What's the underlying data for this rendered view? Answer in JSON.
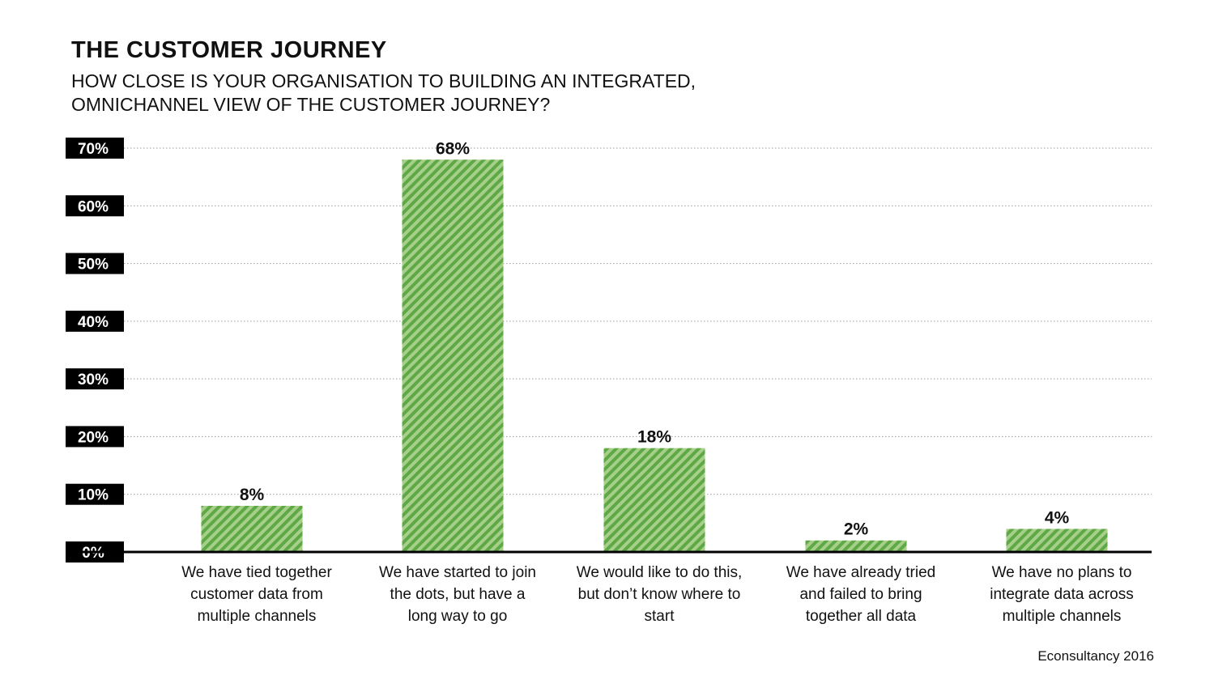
{
  "header": {
    "title": "THE CUSTOMER JOURNEY",
    "subtitle_line1": "HOW CLOSE IS YOUR ORGANISATION TO BUILDING AN INTEGRATED,",
    "subtitle_line2": "OMNICHANNEL VIEW OF THE CUSTOMER JOURNEY?"
  },
  "source": "Econsultancy 2016",
  "chart_data": {
    "type": "bar",
    "categories": [
      [
        "We have tied together",
        "customer data from",
        "multiple channels"
      ],
      [
        "We have started to join",
        "the dots, but have a",
        "long way to go"
      ],
      [
        "We would like to do this,",
        "but don’t know where to",
        "start"
      ],
      [
        "We have already tried",
        "and failed to bring",
        "together all data"
      ],
      [
        "We have no plans to",
        "integrate data across",
        "multiple channels"
      ]
    ],
    "values": [
      8,
      68,
      18,
      2,
      4
    ],
    "value_labels": [
      "8%",
      "68%",
      "18%",
      "2%",
      "4%"
    ],
    "yticks": [
      {
        "value": 0,
        "label": "0%"
      },
      {
        "value": 10,
        "label": "10%"
      },
      {
        "value": 20,
        "label": "20%"
      },
      {
        "value": 30,
        "label": "30%"
      },
      {
        "value": 40,
        "label": "40%"
      },
      {
        "value": 50,
        "label": "50%"
      },
      {
        "value": 60,
        "label": "60%"
      },
      {
        "value": 70,
        "label": "70%"
      }
    ],
    "ylim": [
      0,
      70
    ],
    "grid": true,
    "colors": {
      "bar_light": "#a6d08a",
      "bar_dark": "#5fa846",
      "tick_bg": "#000000",
      "axis": "#000000",
      "grid": "#9a9a9a"
    }
  }
}
